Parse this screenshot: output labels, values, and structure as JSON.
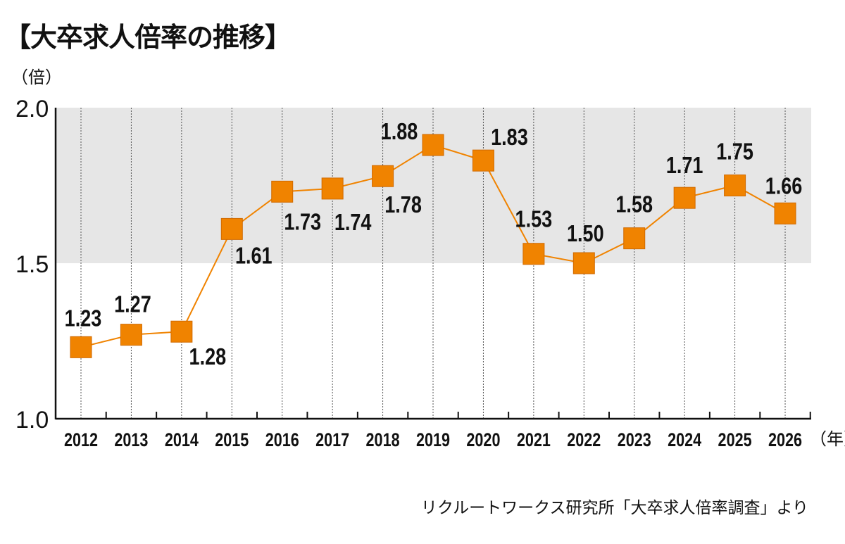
{
  "title": "【大卒求人倍率の推移】",
  "source": "リクルートワークス研究所「大卒求人倍率調査」より",
  "chart_data": {
    "type": "line",
    "title": "【大卒求人倍率の推移】",
    "ylabel": "（倍）",
    "xlabel": "（年）",
    "x": [
      "2012",
      "2013",
      "2014",
      "2015",
      "2016",
      "2017",
      "2018",
      "2019",
      "2020",
      "2021",
      "2022",
      "2023",
      "2024",
      "2025",
      "2026"
    ],
    "values": [
      1.23,
      1.27,
      1.28,
      1.61,
      1.73,
      1.74,
      1.78,
      1.88,
      1.83,
      1.53,
      1.5,
      1.58,
      1.71,
      1.75,
      1.66
    ],
    "data_labels": [
      "1.23",
      "1.27",
      "1.28",
      "1.61",
      "1.73",
      "1.74",
      "1.78",
      "1.88",
      "1.83",
      "1.53",
      "1.50",
      "1.58",
      "1.71",
      "1.75",
      "1.66"
    ],
    "ylim": [
      1.0,
      2.0
    ],
    "yticks": [
      "1.0",
      "1.5",
      "2.0"
    ],
    "shaded_band": [
      1.5,
      2.0
    ],
    "grid": "vertical dotted",
    "colors": {
      "line": "#f08300",
      "marker": "#f08300",
      "band": "#e6e6e6"
    }
  }
}
